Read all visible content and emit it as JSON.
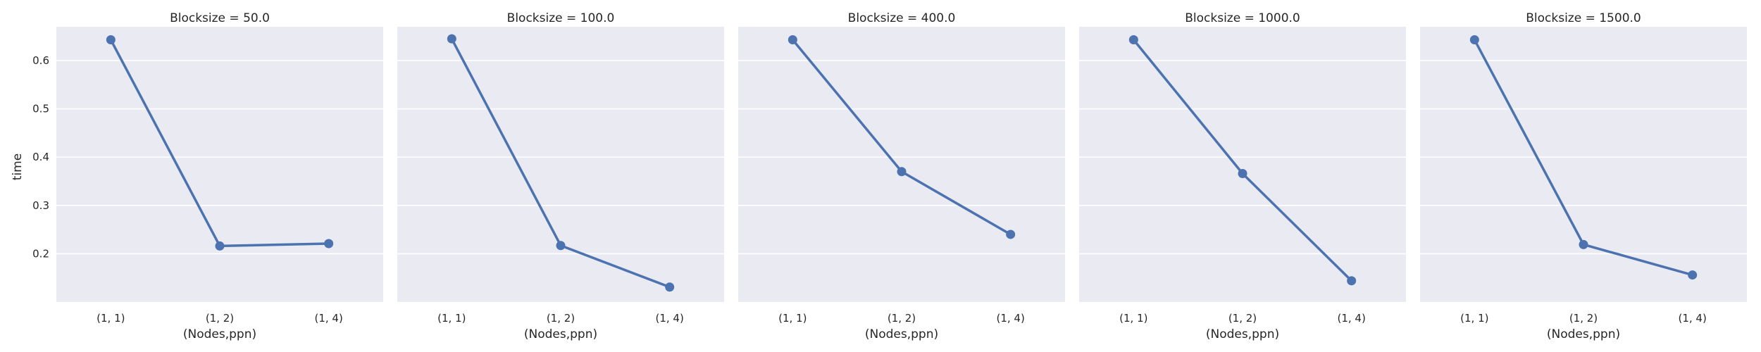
{
  "chart_data": {
    "type": "line",
    "xlabel": "(Nodes,ppn)",
    "ylabel": "time",
    "categories": [
      "(1, 1)",
      "(1, 2)",
      "(1, 4)"
    ],
    "ylim": [
      0.1,
      0.67
    ],
    "yticks": [
      "0.2",
      "0.3",
      "0.4",
      "0.5",
      "0.6"
    ],
    "grid": true,
    "series_color": "#4c72b0",
    "panel_background": "#eaeaf2",
    "panels": [
      {
        "title": "Blocksize = 50.0",
        "values": [
          0.643,
          0.216,
          0.221
        ]
      },
      {
        "title": "Blocksize = 100.0",
        "values": [
          0.645,
          0.217,
          0.131
        ]
      },
      {
        "title": "Blocksize = 400.0",
        "values": [
          0.643,
          0.37,
          0.24
        ]
      },
      {
        "title": "Blocksize = 1000.0",
        "values": [
          0.643,
          0.366,
          0.144
        ]
      },
      {
        "title": "Blocksize = 1500.0",
        "values": [
          0.643,
          0.219,
          0.156
        ]
      }
    ]
  }
}
